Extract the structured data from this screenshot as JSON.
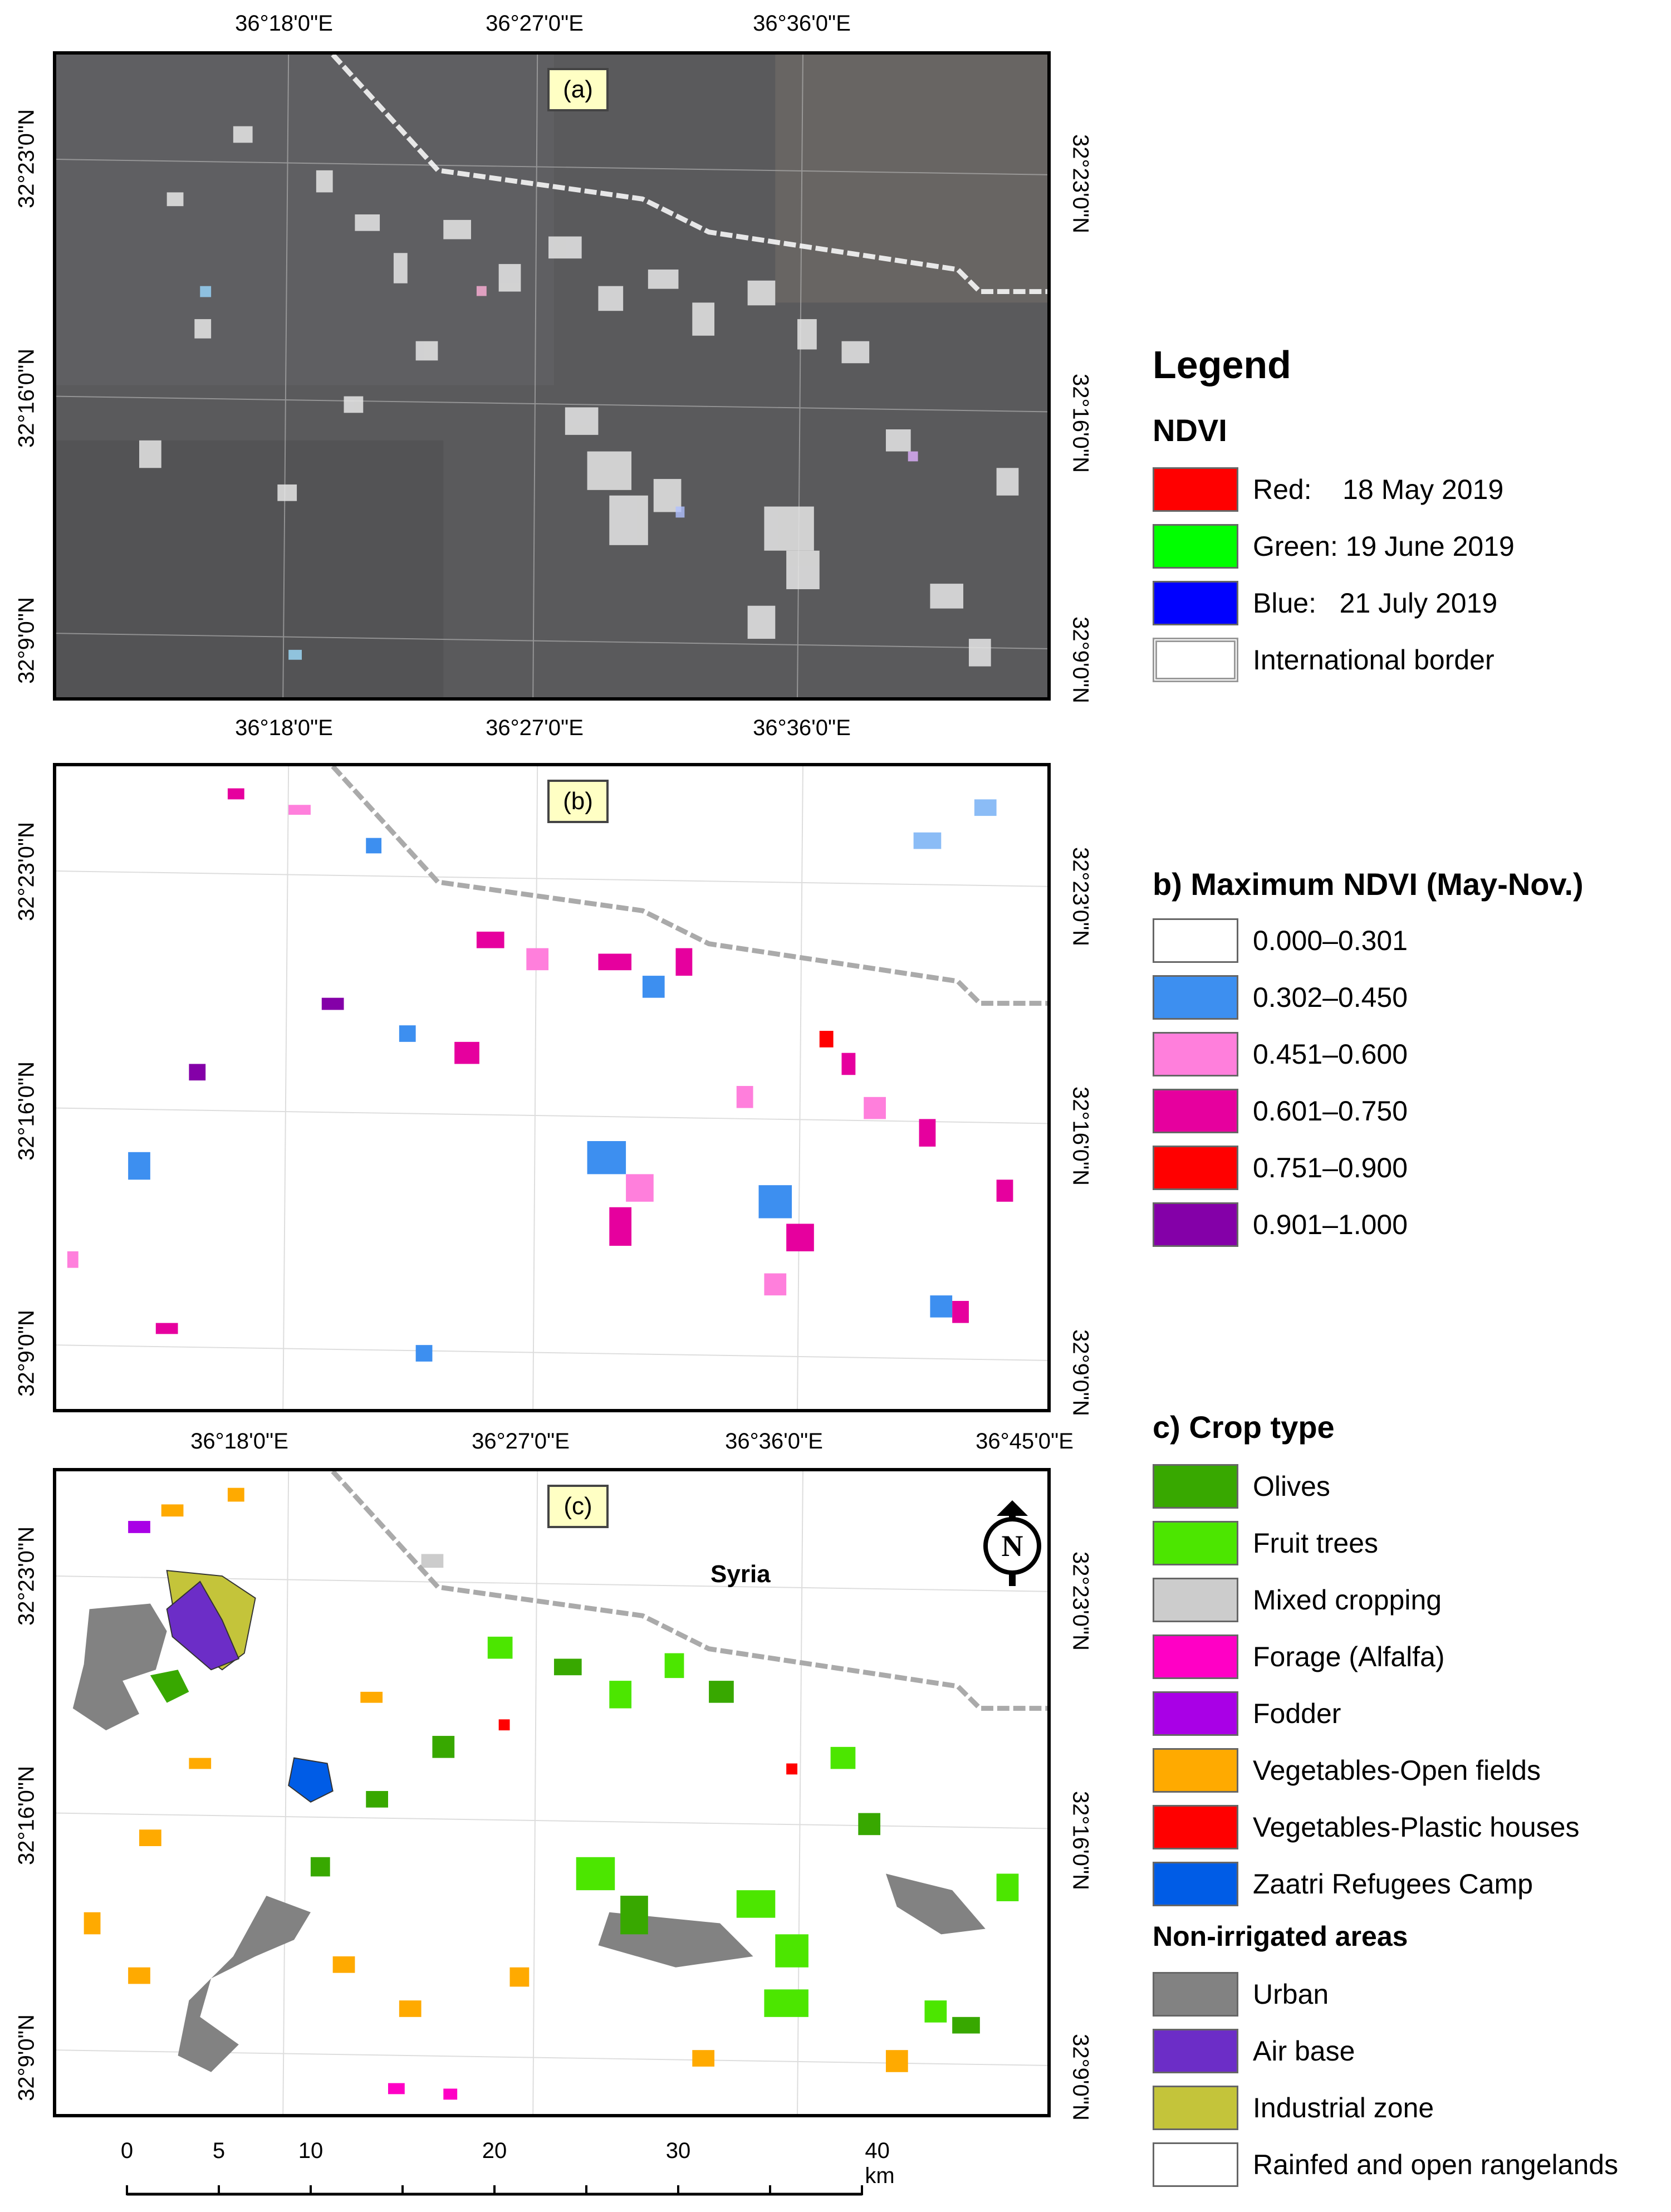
{
  "panels": {
    "a": {
      "label": "(a)"
    },
    "b": {
      "label": "(b)"
    },
    "c": {
      "label": "(c)",
      "country_label": "Syria"
    }
  },
  "axes": {
    "top_a": [
      "36°18'0\"E",
      "36°27'0\"E",
      "36°36'0\"E"
    ],
    "top_b": [
      "36°18'0\"E",
      "36°27'0\"E",
      "36°36'0\"E"
    ],
    "top_c": [
      "36°18'0\"E",
      "36°27'0\"E",
      "36°36'0\"E",
      "36°45'0\"E"
    ],
    "left_a": [
      "32°23'0\"N",
      "32°16'0\"N",
      "32°9'0\"N"
    ],
    "right_a": [
      "32°23'0\"N",
      "32°16'0\"N",
      "32°9'0\"N"
    ],
    "left_b": [
      "32°23'0\"N",
      "32°16'0\"N",
      "32°9'0\"N"
    ],
    "right_b": [
      "32°23'0\"N",
      "32°16'0\"N",
      "32°9'0\"N"
    ],
    "left_c": [
      "32°23'0\"N",
      "32°16'0\"N",
      "32°9'0\"N"
    ],
    "right_c": [
      "32°23'0\"N",
      "32°16'0\"N",
      "32°9'0\"N"
    ]
  },
  "legend": {
    "title": "Legend",
    "ndvi": {
      "heading": "NDVI",
      "items": [
        {
          "label": "Red:    18 May 2019",
          "color": "#ff0000",
          "border": false
        },
        {
          "label": "Green: 19 June 2019",
          "color": "#00ff00",
          "border": false
        },
        {
          "label": "Blue:   21 July 2019",
          "color": "#0000ff",
          "border": false
        },
        {
          "label": "International border",
          "color": "#ffffff",
          "border": true
        }
      ]
    },
    "max_ndvi": {
      "heading": "b) Maximum NDVI (May-Nov.)",
      "items": [
        {
          "label": "0.000–0.301",
          "color": "#ffffff"
        },
        {
          "label": "0.302–0.450",
          "color": "#3d8ff0"
        },
        {
          "label": "0.451–0.600",
          "color": "#ff7fdc"
        },
        {
          "label": "0.601–0.750",
          "color": "#e6009e"
        },
        {
          "label": "0.751–0.900",
          "color": "#ff0000"
        },
        {
          "label": "0.901–1.000",
          "color": "#8400a8"
        }
      ]
    },
    "crop_type": {
      "heading": "c) Crop type",
      "items": [
        {
          "label": "Olives",
          "color": "#38a800"
        },
        {
          "label": "Fruit trees",
          "color": "#4ce600"
        },
        {
          "label": "Mixed cropping",
          "color": "#cccccc"
        },
        {
          "label": "Forage (Alfalfa)",
          "color": "#ff00c5"
        },
        {
          "label": "Fodder",
          "color": "#a900e6"
        },
        {
          "label": "Vegetables-Open fields",
          "color": "#ffaa00"
        },
        {
          "label": "Vegetables-Plastic houses",
          "color": "#ff0000"
        },
        {
          "label": "Zaatri Refugees Camp",
          "color": "#005ce6"
        }
      ]
    },
    "non_irrigated": {
      "heading": "Non-irrigated areas",
      "items": [
        {
          "label": "Urban",
          "color": "#828282"
        },
        {
          "label": "Air base",
          "color": "#6c2dc7"
        },
        {
          "label": "Industrial zone",
          "color": "#c4c43a"
        },
        {
          "label": "Rainfed and open rangelands",
          "color": "#ffffff"
        }
      ]
    }
  },
  "scale_bar": {
    "labels": [
      "0",
      "5",
      "10",
      "20",
      "30",
      "40 km"
    ],
    "values": [
      0,
      5,
      10,
      20,
      30,
      40
    ]
  }
}
